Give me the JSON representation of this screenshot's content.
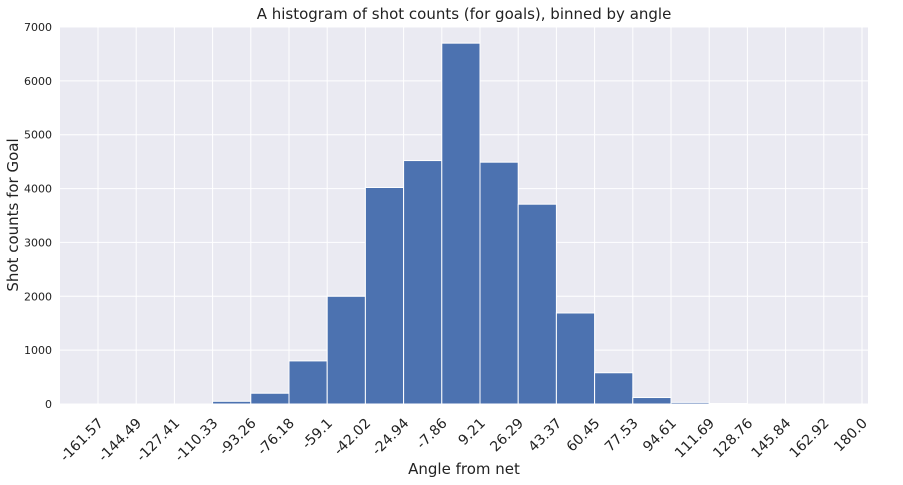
{
  "chart_data": {
    "type": "bar",
    "title": "A histogram of shot counts (for goals), binned by angle",
    "xlabel": "Angle from net",
    "ylabel": "Shot counts for Goal",
    "ylim": [
      0,
      7000
    ],
    "yticks": [
      0,
      1000,
      2000,
      3000,
      4000,
      5000,
      6000,
      7000
    ],
    "categories": [
      "-161.57",
      "-144.49",
      "-127.41",
      "-110.33",
      "-93.26",
      "-76.18",
      "-59.1",
      "-42.02",
      "-24.94",
      "-7.86",
      "9.21",
      "26.29",
      "43.37",
      "60.45",
      "77.53",
      "94.61",
      "111.69",
      "128.76",
      "145.84",
      "162.92",
      "180.0"
    ],
    "values": [
      0,
      0,
      0,
      50,
      200,
      800,
      2000,
      4020,
      4520,
      6700,
      4490,
      3710,
      1690,
      580,
      120,
      30,
      10,
      0,
      0,
      0,
      0
    ],
    "bar_color": "#4c72b0",
    "background": "#eaeaf2",
    "grid": true
  }
}
